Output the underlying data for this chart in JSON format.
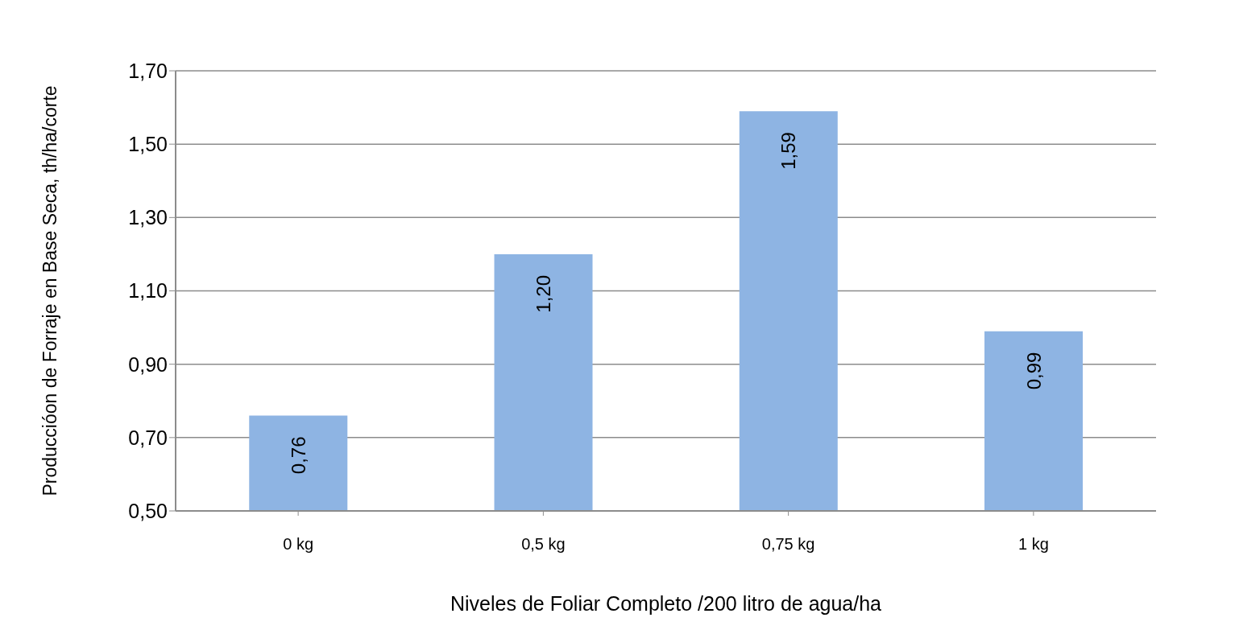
{
  "chart_data": {
    "type": "bar",
    "xlabel": "Niveles de Foliar Completo /200 litro de agua/ha",
    "ylabel": "Produccióon de Forraje en Base Seca, th/ha/corte",
    "categories": [
      "0 kg",
      "0,5 kg",
      "0,75 kg",
      "1 kg"
    ],
    "values": [
      0.76,
      1.2,
      1.59,
      0.99
    ],
    "color": "#8eb4e3",
    "value_labels": [
      "0,76",
      "1,20",
      "1,59",
      "0,99"
    ],
    "ylim": [
      0.5,
      1.7
    ],
    "yticks": [
      {
        "value": 0.5,
        "label": "0,50"
      },
      {
        "value": 0.7,
        "label": "0,70"
      },
      {
        "value": 0.9,
        "label": "0,90"
      },
      {
        "value": 1.1,
        "label": "1,10"
      },
      {
        "value": 1.3,
        "label": "1,30"
      },
      {
        "value": 1.5,
        "label": "1,50"
      },
      {
        "value": 1.7,
        "label": "1,70"
      }
    ],
    "grid": "y"
  }
}
